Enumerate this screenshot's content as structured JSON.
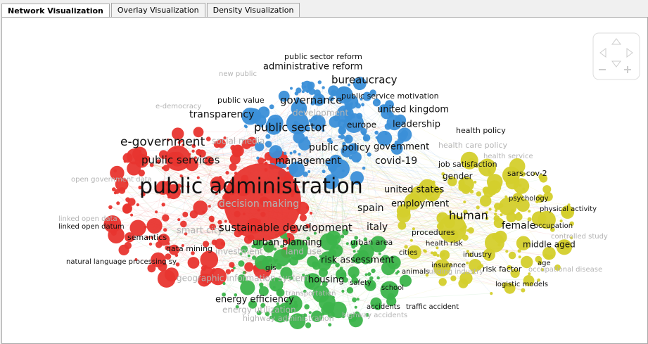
{
  "tabs": [
    "Network Visualization",
    "Overlay Visualization",
    "Density Visualization"
  ],
  "nodes": [
    {
      "label": "public administration"
    },
    {
      "label": "e-government"
    },
    {
      "label": "public services"
    },
    {
      "label": "transparency"
    },
    {
      "label": "social media"
    },
    {
      "label": "public value"
    },
    {
      "label": "decision making"
    },
    {
      "label": "smart city"
    },
    {
      "label": "semantics"
    },
    {
      "label": "data mining"
    },
    {
      "label": "linked open datum"
    },
    {
      "label": "linked open data"
    },
    {
      "label": "natural language processing sy"
    },
    {
      "label": "open government data"
    },
    {
      "label": "e-democracy"
    },
    {
      "label": "new public"
    },
    {
      "label": "public sector reform"
    },
    {
      "label": "administrative reform"
    },
    {
      "label": "bureaucracy"
    },
    {
      "label": "public service motivation"
    },
    {
      "label": "governance"
    },
    {
      "label": "united kingdom"
    },
    {
      "label": "public sector"
    },
    {
      "label": "leadership"
    },
    {
      "label": "europe"
    },
    {
      "label": "public policy"
    },
    {
      "label": "government"
    },
    {
      "label": "management"
    },
    {
      "label": "covid-19"
    },
    {
      "label": "development"
    },
    {
      "label": "sustainable development"
    },
    {
      "label": "italy"
    },
    {
      "label": "spain"
    },
    {
      "label": "urban planning"
    },
    {
      "label": "urban area"
    },
    {
      "label": "investment"
    },
    {
      "label": "land use"
    },
    {
      "label": "risk assessment"
    },
    {
      "label": "cities"
    },
    {
      "label": "gis"
    },
    {
      "label": "geographic information system"
    },
    {
      "label": "housing"
    },
    {
      "label": "safety"
    },
    {
      "label": "school"
    },
    {
      "label": "energy efficiency"
    },
    {
      "label": "energy utilization"
    },
    {
      "label": "accidents"
    },
    {
      "label": "traffic accident"
    },
    {
      "label": "highway administration"
    },
    {
      "label": "highway accidents"
    },
    {
      "label": "animals"
    },
    {
      "label": "transportation"
    },
    {
      "label": "health policy"
    },
    {
      "label": "health care policy"
    },
    {
      "label": "health service"
    },
    {
      "label": "job satisfaction"
    },
    {
      "label": "gender"
    },
    {
      "label": "sars-cov-2"
    },
    {
      "label": "united states"
    },
    {
      "label": "employment"
    },
    {
      "label": "psychology"
    },
    {
      "label": "physical activity"
    },
    {
      "label": "human"
    },
    {
      "label": "female"
    },
    {
      "label": "occupation"
    },
    {
      "label": "controlled study"
    },
    {
      "label": "procedures"
    },
    {
      "label": "health risk"
    },
    {
      "label": "middle aged"
    },
    {
      "label": "industry"
    },
    {
      "label": "insurance"
    },
    {
      "label": "age"
    },
    {
      "label": "risk factor"
    },
    {
      "label": "building industry"
    },
    {
      "label": "logistic models"
    },
    {
      "label": "occupational disease"
    }
  ]
}
